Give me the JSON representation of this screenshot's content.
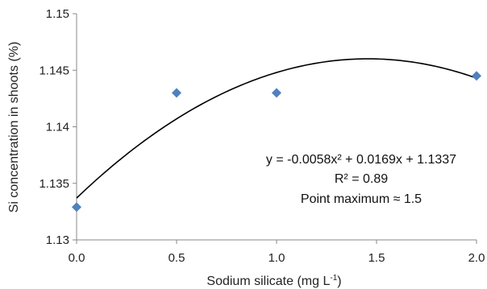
{
  "chart_data": {
    "type": "scatter",
    "x_label_main": "Sodium silicate (mg L",
    "x_label_sup": "-1",
    "x_label_end": ")",
    "y_label": "Si concentration in shoots (%)",
    "xlim": [
      0.0,
      2.0
    ],
    "ylim": [
      1.13,
      1.15
    ],
    "x_ticks": [
      "0.0",
      "0.5",
      "1.0",
      "1.5",
      "2.0"
    ],
    "x_tick_values": [
      0.0,
      0.5,
      1.0,
      1.5,
      2.0
    ],
    "y_ticks": [
      "1.13",
      "1.135",
      "1.14",
      "1.145",
      "1.15"
    ],
    "y_tick_values": [
      1.13,
      1.135,
      1.14,
      1.145,
      1.15
    ],
    "grid": false,
    "points": [
      {
        "x": 0.0,
        "y": 1.1329
      },
      {
        "x": 0.5,
        "y": 1.143
      },
      {
        "x": 1.0,
        "y": 1.143
      },
      {
        "x": 2.0,
        "y": 1.1445
      }
    ],
    "fit": {
      "a": -0.0058,
      "b": 0.0169,
      "c": 1.1337
    },
    "annotations": [
      "y = -0.0058x² + 0.0169x + 1.1337",
      "R² = 0.89",
      "Point maximum ≈ 1.5"
    ],
    "colors": {
      "marker": "#4f81bd",
      "fit_line": "#000000",
      "axis": "#888888"
    }
  }
}
